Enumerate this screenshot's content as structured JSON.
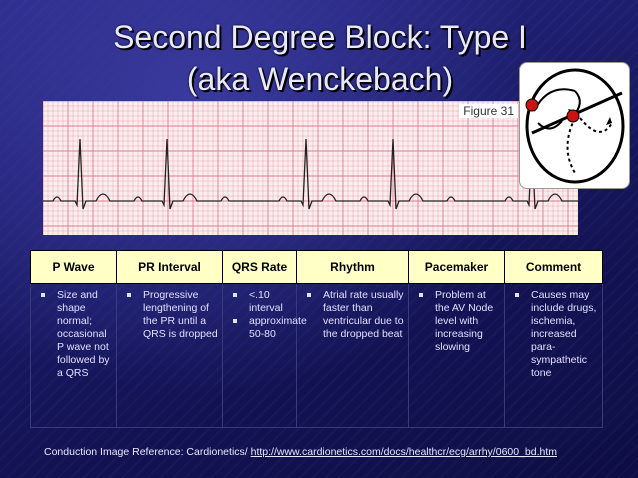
{
  "title": {
    "line1": "Second Degree Block: Type I",
    "line2": "(aka Wenckebach)"
  },
  "figure": {
    "label": "Figure 31"
  },
  "table": {
    "headers": [
      "P Wave",
      "PR Interval",
      "QRS Rate",
      "Rhythm",
      "Pacemaker",
      "Comment"
    ],
    "cells": {
      "p_wave": [
        "Size and shape normal; occasional P wave not followed by a QRS"
      ],
      "pr_interval": [
        "Progressive lengthening of the PR until a QRS is dropped"
      ],
      "qrs_rate": [
        "<.10 interval",
        "approximate 50-80"
      ],
      "rhythm": [
        "Atrial rate usually faster than ventricular due to the dropped beat"
      ],
      "pacemaker": [
        "Problem at the AV Node level with increasing slowing"
      ],
      "comment": [
        "Causes may include drugs, ischemia, increased para-sympathetic tone"
      ]
    }
  },
  "reference": {
    "prefix": "Conduction Image Reference: Cardionetics/ ",
    "url": "http://www.cardionetics.com/docs/healthcr/ecg/arrhy/0600_bd.htm"
  },
  "colors": {
    "header_bg": "#ffffc6",
    "background": "#1a1a6e",
    "ecg_grid": "#e07a8a",
    "ecg_trace": "#222222",
    "heart_dot": "#cc1111"
  },
  "icons": [
    "heart-conduction-diagram"
  ]
}
